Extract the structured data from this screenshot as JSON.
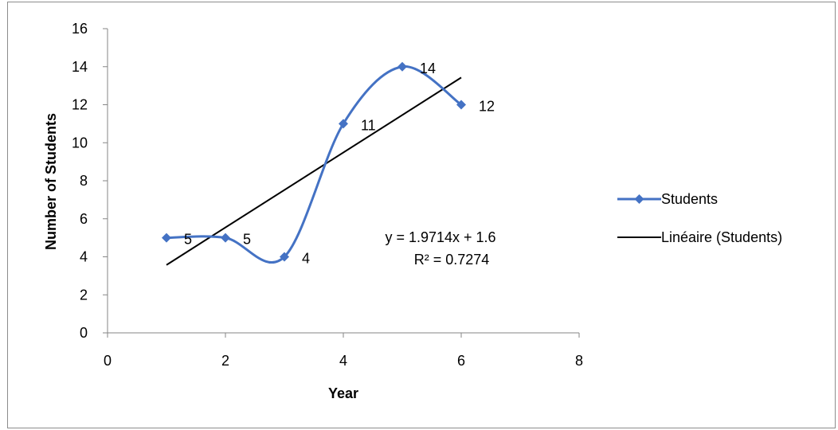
{
  "chart_data": {
    "type": "line",
    "xlabel": "Year",
    "ylabel": "Number of Students",
    "xlim": [
      0,
      8
    ],
    "ylim": [
      0,
      16
    ],
    "x_ticks": [
      0,
      2,
      4,
      6,
      8
    ],
    "y_ticks": [
      0,
      2,
      4,
      6,
      8,
      10,
      12,
      14,
      16
    ],
    "grid": false,
    "legend_position": "right",
    "series": [
      {
        "name": "Students",
        "x": [
          1,
          2,
          3,
          4,
          5,
          6
        ],
        "y": [
          5,
          5,
          4,
          11,
          14,
          12
        ],
        "smooth": true,
        "marker": "diamond",
        "color": "#4472C4",
        "data_labels": [
          "5",
          "5",
          "4",
          "11",
          "14",
          "12"
        ]
      },
      {
        "name": "Linéaire (Students)",
        "type": "linear_trendline",
        "slope": 1.9714,
        "intercept": 1.6,
        "x_range": [
          1,
          6
        ],
        "color": "#000000"
      }
    ],
    "trendline_annotation": {
      "equation": "y = 1.9714x + 1.6",
      "r_squared": "R² = 0.7274"
    }
  }
}
